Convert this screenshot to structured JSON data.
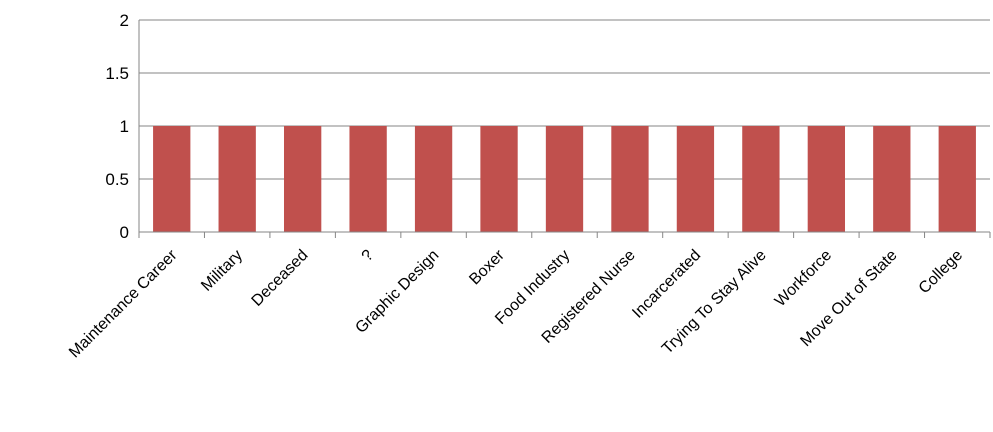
{
  "chart_data": {
    "type": "bar",
    "categories": [
      "Maintenance Career",
      "Military",
      "Deceased",
      "?",
      "Graphic Design",
      "Boxer",
      "Food Industry",
      "Registered Nurse",
      "Incarcerated",
      "Trying To Stay Alive",
      "Workforce",
      "Move Out of State",
      "College"
    ],
    "values": [
      1,
      1,
      1,
      1,
      1,
      1,
      1,
      1,
      1,
      1,
      1,
      1,
      1
    ],
    "title": "",
    "xlabel": "",
    "ylabel": "",
    "ylim": [
      0,
      2
    ],
    "yticks": [
      "0",
      "0.5",
      "1",
      "1.5",
      "2"
    ],
    "grid": true,
    "legend": "none",
    "bar_color": "#c0504d"
  }
}
